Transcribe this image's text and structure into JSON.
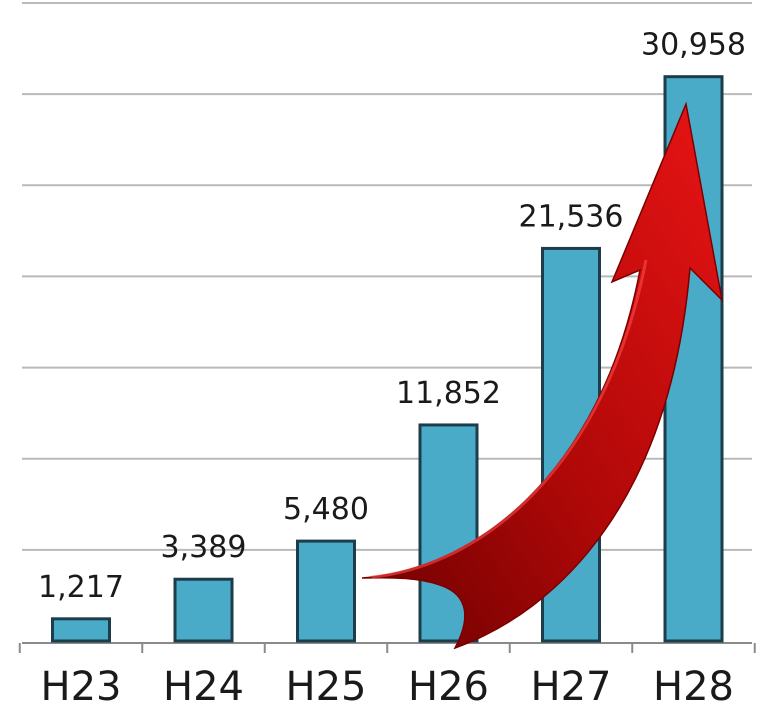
{
  "chart_data": {
    "type": "bar",
    "categories": [
      "H23",
      "H24",
      "H25",
      "H26",
      "H27",
      "H28"
    ],
    "values": [
      1217,
      3389,
      5480,
      11852,
      21536,
      30958
    ],
    "value_labels": [
      "1,217",
      "3,389",
      "5,480",
      "11,852",
      "21,536",
      "30,958"
    ],
    "title": "",
    "xlabel": "",
    "ylabel": "",
    "ylim": [
      0,
      35000
    ],
    "grid": true,
    "legend": "none",
    "annotations": [
      {
        "type": "curved-arrow",
        "color": "#d01010",
        "from_category": "H25",
        "to_category": "H28"
      }
    ],
    "colors": {
      "bar_fill": "#4aabc8",
      "bar_stroke": "#1e3d4a",
      "grid": "#b9b9b9",
      "arrow": "#d01010",
      "arrow_dark": "#7a0000"
    }
  }
}
